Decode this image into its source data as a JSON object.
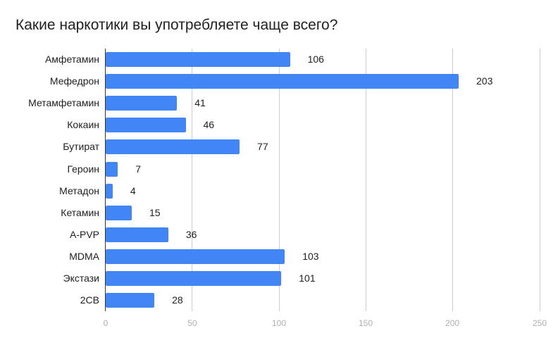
{
  "title": "Какие наркотики вы употребляете чаще всего?",
  "colors": {
    "bar": "#4285f4",
    "grid": "#cccccc",
    "axis": "#333333",
    "tick_label": "#b0b0b0",
    "text": "#212121"
  },
  "chart_data": {
    "type": "bar",
    "orientation": "horizontal",
    "title": "Какие наркотики вы употребляете чаще всего?",
    "xlabel": "",
    "ylabel": "",
    "categories": [
      "Амфетамин",
      "Мефедрон",
      "Метамфетамин",
      "Кокаин",
      "Бутират",
      "Героин",
      "Метадон",
      "Кетамин",
      "A-PVP",
      "MDMA",
      "Экстази",
      "2CB"
    ],
    "values": [
      106,
      203,
      41,
      46,
      77,
      7,
      4,
      15,
      36,
      103,
      101,
      28
    ],
    "data_labels": [
      "106",
      "203",
      "41",
      "46",
      "77",
      "7",
      "4",
      "15",
      "36",
      "103",
      "101",
      "28"
    ],
    "xlim": [
      0,
      250
    ],
    "xticks": [
      "0",
      "50",
      "100",
      "150",
      "200",
      "250"
    ],
    "grid": true,
    "legend": "none"
  }
}
